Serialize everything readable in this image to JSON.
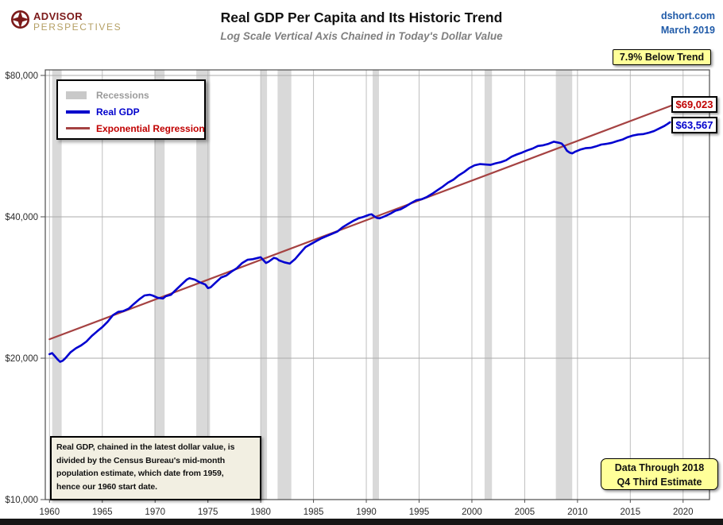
{
  "header": {
    "logo_line1": "ADVISOR",
    "logo_line2": "PERSPECTIVES",
    "title": "Real GDP Per Capita and Its Historic Trend",
    "subtitle": "Log Scale Vertical Axis Chained in Today's Dollar Value",
    "source": "dshort.com",
    "date": "March 2019"
  },
  "annotations": {
    "below_trend": "7.9% Below Trend",
    "trend_value": "$69,023",
    "gdp_value": "$63,567",
    "data_through_line1": "Data Through 2018",
    "data_through_line2": "Q4 Third Estimate",
    "note_lines": [
      "Real GDP, chained in the latest dollar value, is",
      "divided by the Census Bureau's mid-month",
      "population estimate, which date from 1959,",
      "hence our 1960 start date."
    ]
  },
  "legend": [
    {
      "label": "Recessions",
      "type": "box",
      "color": "#C9C9C9",
      "text_color": "#9B9B9B"
    },
    {
      "label": "Real GDP",
      "type": "line",
      "color": "#0000CC",
      "text_color": "#0000CC",
      "thickness": 4
    },
    {
      "label": "Exponential Regression",
      "type": "line",
      "color": "#A54242",
      "text_color": "#C00000",
      "thickness": 3
    }
  ],
  "chart_data": {
    "type": "line",
    "title": "Real GDP Per Capita and Its Historic Trend",
    "subtitle": "Log Scale Vertical Axis Chained in Today's Dollar Value",
    "y_scale": "log",
    "grid": true,
    "legend_position": "top-left",
    "x_axis": {
      "min": 1959.6,
      "max": 2022.5,
      "ticks": [
        1960,
        1965,
        1970,
        1975,
        1980,
        1985,
        1990,
        1995,
        2000,
        2005,
        2010,
        2015,
        2020
      ],
      "tick_labels": [
        "1960",
        "1965",
        "1970",
        "1975",
        "1980",
        "1985",
        "1990",
        "1995",
        "2000",
        "2005",
        "2010",
        "2015",
        "2020"
      ]
    },
    "y_axis": {
      "min": 10000,
      "max": 82200,
      "ticks": [
        {
          "value": 10000,
          "label": "$10,000"
        },
        {
          "value": 20000,
          "label": "$20,000"
        },
        {
          "value": 40000,
          "label": "$40,000"
        },
        {
          "value": 80000,
          "label": "$80,000"
        }
      ]
    },
    "recession_color": "#D9D9D9",
    "recessions": [
      [
        1960.25,
        1961.15
      ],
      [
        1969.92,
        1970.9
      ],
      [
        1973.9,
        1975.2
      ],
      [
        1980.0,
        1980.6
      ],
      [
        1981.6,
        1982.9
      ],
      [
        1990.6,
        1991.2
      ],
      [
        2001.2,
        2001.9
      ],
      [
        2007.95,
        2009.5
      ]
    ],
    "series": [
      {
        "name": "Real GDP",
        "color": "#0000D0",
        "width": 2.6,
        "end_label": "$63,567",
        "points": [
          [
            1960.0,
            20400
          ],
          [
            1960.25,
            20500
          ],
          [
            1960.5,
            20200
          ],
          [
            1960.75,
            19900
          ],
          [
            1961.0,
            19650
          ],
          [
            1961.25,
            19750
          ],
          [
            1961.5,
            20000
          ],
          [
            1962.0,
            20600
          ],
          [
            1962.5,
            21000
          ],
          [
            1963.0,
            21300
          ],
          [
            1963.5,
            21700
          ],
          [
            1964.0,
            22300
          ],
          [
            1964.5,
            22800
          ],
          [
            1965.0,
            23300
          ],
          [
            1965.5,
            23900
          ],
          [
            1966.0,
            24700
          ],
          [
            1966.5,
            25100
          ],
          [
            1967.0,
            25200
          ],
          [
            1967.5,
            25500
          ],
          [
            1968.0,
            26100
          ],
          [
            1968.5,
            26700
          ],
          [
            1969.0,
            27200
          ],
          [
            1969.5,
            27300
          ],
          [
            1969.75,
            27200
          ],
          [
            1970.25,
            26900
          ],
          [
            1970.75,
            26800
          ],
          [
            1971.0,
            27100
          ],
          [
            1971.5,
            27300
          ],
          [
            1972.0,
            28000
          ],
          [
            1972.5,
            28700
          ],
          [
            1973.0,
            29400
          ],
          [
            1973.25,
            29600
          ],
          [
            1973.75,
            29400
          ],
          [
            1974.25,
            29000
          ],
          [
            1974.75,
            28700
          ],
          [
            1975.0,
            28200
          ],
          [
            1975.25,
            28300
          ],
          [
            1975.75,
            29000
          ],
          [
            1976.25,
            29700
          ],
          [
            1976.75,
            30000
          ],
          [
            1977.25,
            30600
          ],
          [
            1977.75,
            31100
          ],
          [
            1978.25,
            31900
          ],
          [
            1978.75,
            32400
          ],
          [
            1979.25,
            32500
          ],
          [
            1979.75,
            32700
          ],
          [
            1980.0,
            32800
          ],
          [
            1980.5,
            31900
          ],
          [
            1980.75,
            32100
          ],
          [
            1981.25,
            32700
          ],
          [
            1981.5,
            32600
          ],
          [
            1981.75,
            32300
          ],
          [
            1982.25,
            32000
          ],
          [
            1982.75,
            31800
          ],
          [
            1983.25,
            32500
          ],
          [
            1983.75,
            33500
          ],
          [
            1984.25,
            34500
          ],
          [
            1984.75,
            35000
          ],
          [
            1985.25,
            35500
          ],
          [
            1985.75,
            36000
          ],
          [
            1986.25,
            36400
          ],
          [
            1986.75,
            36800
          ],
          [
            1987.25,
            37200
          ],
          [
            1987.75,
            38000
          ],
          [
            1988.25,
            38600
          ],
          [
            1988.75,
            39200
          ],
          [
            1989.25,
            39700
          ],
          [
            1989.75,
            40000
          ],
          [
            1990.25,
            40400
          ],
          [
            1990.5,
            40500
          ],
          [
            1990.75,
            40100
          ],
          [
            1991.0,
            39800
          ],
          [
            1991.25,
            39700
          ],
          [
            1991.75,
            40100
          ],
          [
            1992.25,
            40600
          ],
          [
            1992.75,
            41200
          ],
          [
            1993.25,
            41500
          ],
          [
            1993.75,
            42100
          ],
          [
            1994.25,
            42800
          ],
          [
            1994.75,
            43400
          ],
          [
            1995.25,
            43600
          ],
          [
            1995.75,
            44100
          ],
          [
            1996.25,
            44800
          ],
          [
            1996.75,
            45600
          ],
          [
            1997.25,
            46400
          ],
          [
            1997.75,
            47300
          ],
          [
            1998.25,
            48000
          ],
          [
            1998.75,
            49000
          ],
          [
            1999.25,
            49800
          ],
          [
            1999.75,
            50800
          ],
          [
            2000.25,
            51500
          ],
          [
            2000.75,
            51800
          ],
          [
            2001.25,
            51700
          ],
          [
            2001.75,
            51600
          ],
          [
            2002.25,
            52000
          ],
          [
            2002.75,
            52300
          ],
          [
            2003.25,
            52800
          ],
          [
            2003.75,
            53700
          ],
          [
            2004.25,
            54300
          ],
          [
            2004.75,
            54800
          ],
          [
            2005.25,
            55400
          ],
          [
            2005.75,
            55900
          ],
          [
            2006.25,
            56600
          ],
          [
            2006.75,
            56800
          ],
          [
            2007.25,
            57200
          ],
          [
            2007.75,
            57800
          ],
          [
            2008.25,
            57500
          ],
          [
            2008.5,
            57300
          ],
          [
            2008.75,
            56500
          ],
          [
            2009.0,
            55300
          ],
          [
            2009.25,
            54800
          ],
          [
            2009.5,
            54600
          ],
          [
            2009.75,
            55000
          ],
          [
            2010.25,
            55600
          ],
          [
            2010.75,
            56000
          ],
          [
            2011.25,
            56100
          ],
          [
            2011.75,
            56500
          ],
          [
            2012.25,
            57000
          ],
          [
            2012.75,
            57200
          ],
          [
            2013.25,
            57500
          ],
          [
            2013.75,
            58000
          ],
          [
            2014.25,
            58400
          ],
          [
            2014.75,
            59100
          ],
          [
            2015.25,
            59600
          ],
          [
            2015.75,
            59900
          ],
          [
            2016.25,
            60000
          ],
          [
            2016.75,
            60400
          ],
          [
            2017.25,
            60900
          ],
          [
            2017.75,
            61700
          ],
          [
            2018.25,
            62500
          ],
          [
            2018.5,
            63000
          ],
          [
            2018.75,
            63567
          ]
        ]
      },
      {
        "name": "Exponential Regression",
        "color": "#A54242",
        "width": 2.2,
        "end_label": "$69,023",
        "points": [
          [
            1960.0,
            21950
          ],
          [
            2018.9,
            69023
          ]
        ]
      }
    ]
  }
}
